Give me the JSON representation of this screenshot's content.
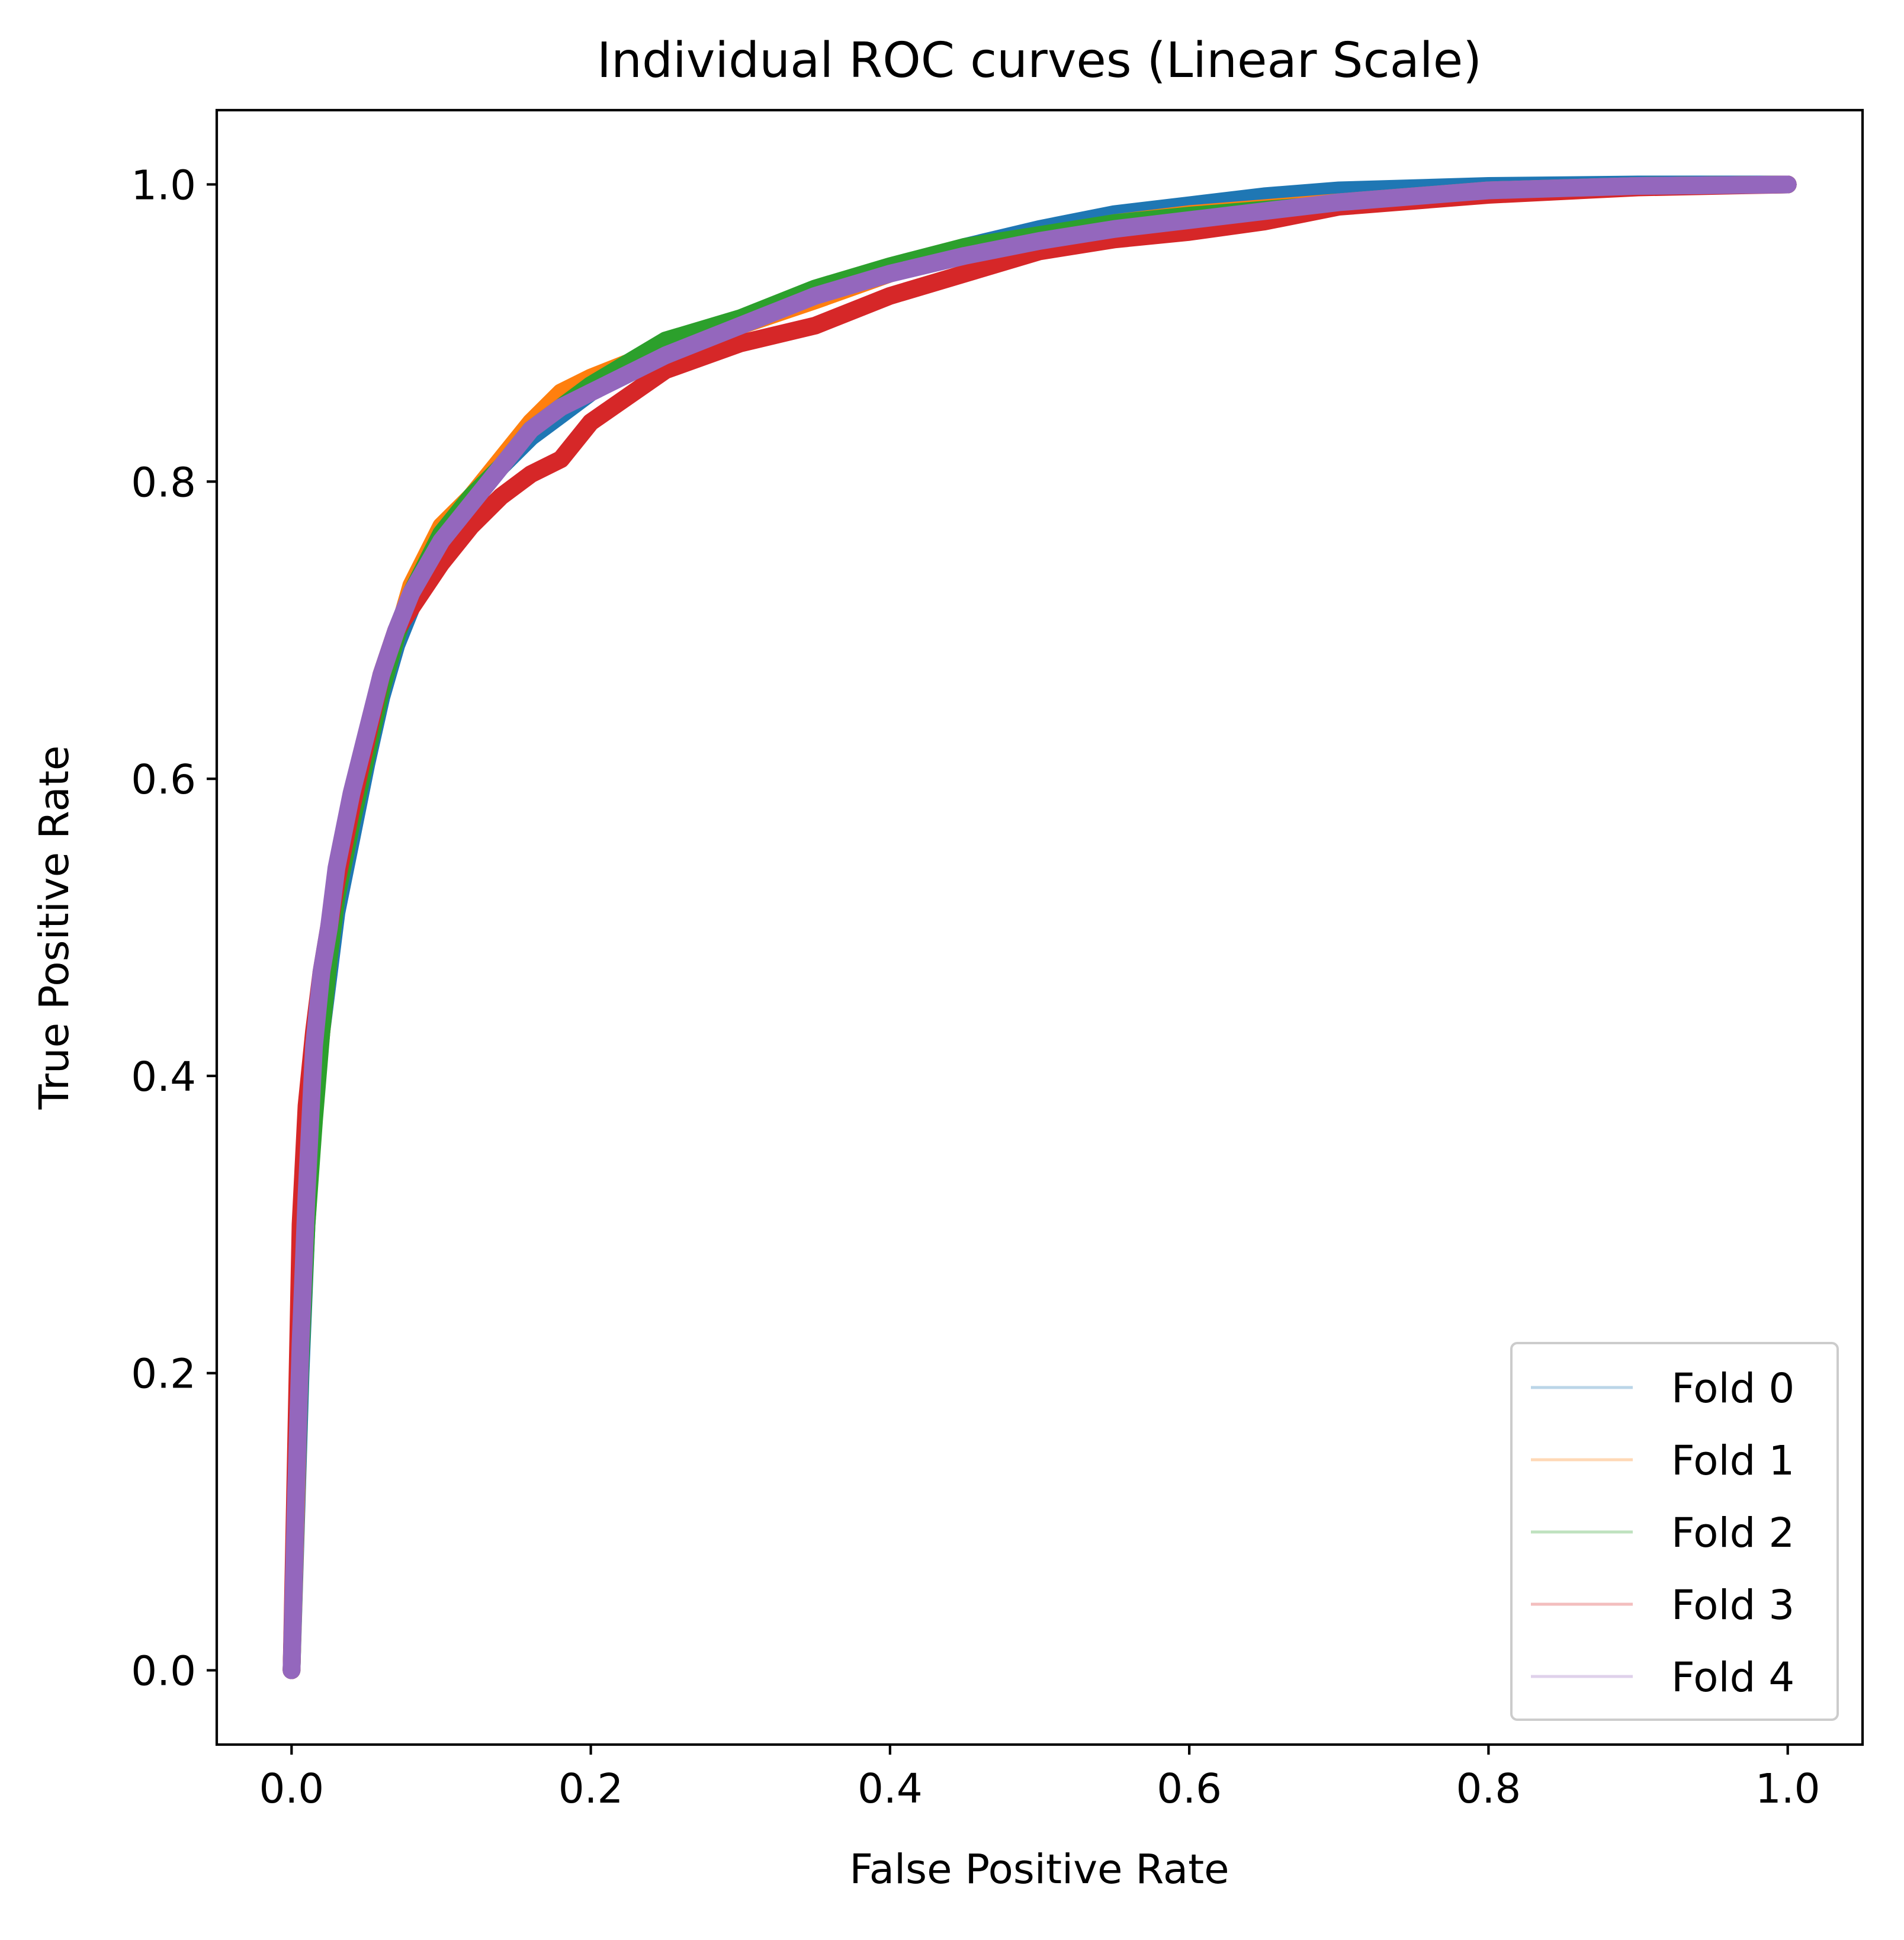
{
  "chart_data": {
    "type": "line",
    "title": "Individual ROC curves (Linear Scale)",
    "xlabel": "False Positive Rate",
    "ylabel": "True Positive Rate",
    "xlim": [
      -0.05,
      1.05
    ],
    "ylim": [
      -0.05,
      1.05
    ],
    "xticks": [
      "0.0",
      "0.2",
      "0.4",
      "0.6",
      "0.8",
      "1.0"
    ],
    "yticks": [
      "0.0",
      "0.2",
      "0.4",
      "0.6",
      "0.8",
      "1.0"
    ],
    "grid": false,
    "legend_position": "lower-right",
    "series": [
      {
        "name": "Fold 0",
        "color": "#1f77b4",
        "x": [
          0.0,
          0.003,
          0.006,
          0.01,
          0.015,
          0.02,
          0.025,
          0.03,
          0.04,
          0.05,
          0.06,
          0.07,
          0.08,
          0.1,
          0.12,
          0.14,
          0.16,
          0.18,
          0.2,
          0.25,
          0.3,
          0.35,
          0.4,
          0.45,
          0.5,
          0.55,
          0.6,
          0.65,
          0.7,
          0.8,
          0.9,
          1.0
        ],
        "y": [
          0.0,
          0.1,
          0.2,
          0.3,
          0.38,
          0.43,
          0.47,
          0.51,
          0.56,
          0.61,
          0.655,
          0.69,
          0.715,
          0.755,
          0.785,
          0.81,
          0.83,
          0.845,
          0.86,
          0.885,
          0.905,
          0.925,
          0.943,
          0.958,
          0.97,
          0.98,
          0.986,
          0.992,
          0.996,
          0.999,
          1.0,
          1.0
        ]
      },
      {
        "name": "Fold 1",
        "color": "#ff7f0e",
        "x": [
          0.0,
          0.003,
          0.006,
          0.01,
          0.015,
          0.02,
          0.025,
          0.03,
          0.04,
          0.05,
          0.06,
          0.07,
          0.08,
          0.1,
          0.12,
          0.14,
          0.16,
          0.18,
          0.2,
          0.25,
          0.3,
          0.35,
          0.4,
          0.45,
          0.5,
          0.55,
          0.6,
          0.65,
          0.7,
          0.8,
          0.9,
          1.0
        ],
        "y": [
          0.0,
          0.11,
          0.22,
          0.31,
          0.38,
          0.43,
          0.48,
          0.52,
          0.57,
          0.62,
          0.66,
          0.695,
          0.73,
          0.77,
          0.79,
          0.815,
          0.84,
          0.86,
          0.87,
          0.89,
          0.905,
          0.922,
          0.94,
          0.955,
          0.965,
          0.974,
          0.98,
          0.984,
          0.988,
          0.996,
          0.999,
          1.0
        ]
      },
      {
        "name": "Fold 2",
        "color": "#2ca02c",
        "x": [
          0.0,
          0.003,
          0.006,
          0.01,
          0.015,
          0.02,
          0.025,
          0.03,
          0.04,
          0.05,
          0.06,
          0.07,
          0.08,
          0.1,
          0.12,
          0.14,
          0.16,
          0.18,
          0.2,
          0.25,
          0.3,
          0.35,
          0.4,
          0.45,
          0.5,
          0.55,
          0.6,
          0.65,
          0.7,
          0.8,
          0.9,
          1.0
        ],
        "y": [
          0.0,
          0.12,
          0.21,
          0.3,
          0.37,
          0.43,
          0.48,
          0.52,
          0.57,
          0.615,
          0.66,
          0.695,
          0.725,
          0.765,
          0.79,
          0.81,
          0.835,
          0.85,
          0.865,
          0.895,
          0.91,
          0.93,
          0.945,
          0.958,
          0.966,
          0.974,
          0.979,
          0.983,
          0.987,
          0.995,
          0.999,
          1.0
        ]
      },
      {
        "name": "Fold 3",
        "color": "#d62728",
        "x": [
          0.0,
          0.003,
          0.006,
          0.01,
          0.015,
          0.02,
          0.025,
          0.03,
          0.04,
          0.05,
          0.06,
          0.07,
          0.08,
          0.1,
          0.12,
          0.14,
          0.16,
          0.18,
          0.2,
          0.25,
          0.3,
          0.35,
          0.4,
          0.45,
          0.5,
          0.55,
          0.6,
          0.65,
          0.7,
          0.8,
          0.9,
          1.0
        ],
        "y": [
          0.0,
          0.15,
          0.3,
          0.38,
          0.43,
          0.47,
          0.5,
          0.53,
          0.58,
          0.625,
          0.67,
          0.7,
          0.715,
          0.745,
          0.77,
          0.79,
          0.805,
          0.815,
          0.84,
          0.875,
          0.893,
          0.905,
          0.925,
          0.94,
          0.955,
          0.963,
          0.968,
          0.975,
          0.985,
          0.993,
          0.998,
          1.0
        ]
      },
      {
        "name": "Fold 4",
        "color": "#9467bd",
        "x": [
          0.0,
          0.003,
          0.006,
          0.01,
          0.015,
          0.02,
          0.025,
          0.03,
          0.04,
          0.05,
          0.06,
          0.07,
          0.08,
          0.1,
          0.12,
          0.14,
          0.16,
          0.18,
          0.2,
          0.25,
          0.3,
          0.35,
          0.4,
          0.45,
          0.5,
          0.55,
          0.6,
          0.65,
          0.7,
          0.8,
          0.9,
          1.0
        ],
        "y": [
          0.0,
          0.12,
          0.22,
          0.32,
          0.42,
          0.47,
          0.5,
          0.54,
          0.59,
          0.63,
          0.67,
          0.7,
          0.725,
          0.76,
          0.785,
          0.81,
          0.835,
          0.85,
          0.86,
          0.885,
          0.905,
          0.925,
          0.94,
          0.952,
          0.962,
          0.97,
          0.976,
          0.982,
          0.988,
          0.996,
          0.999,
          1.0
        ]
      }
    ]
  }
}
